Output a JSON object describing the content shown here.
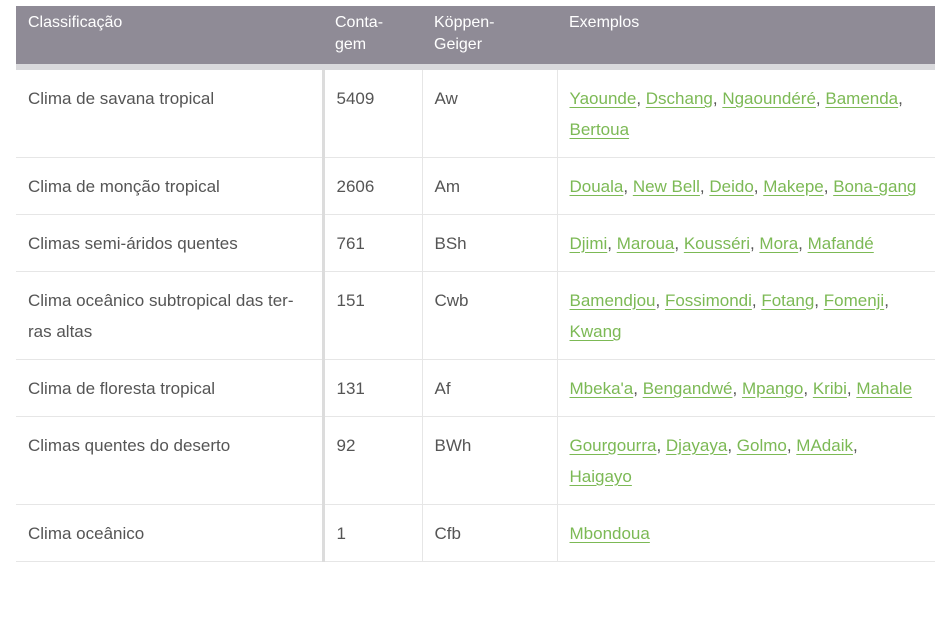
{
  "table": {
    "headers": {
      "classification": "Classificação",
      "count_line1": "Conta-",
      "count_line2": "gem",
      "koppen_line1": "Köppen-",
      "koppen_line2": "Geiger",
      "examples": "Exemplos"
    },
    "rows": [
      {
        "classification": "Clima de savana tropical",
        "count": "5409",
        "koppen": "Aw",
        "examples": [
          "Yaounde",
          "Dschang",
          "Ngaoundéré",
          "Bamenda",
          "Bertoua"
        ]
      },
      {
        "classification": "Clima de monção tropical",
        "count": "2606",
        "koppen": "Am",
        "examples": [
          "Douala",
          "New Bell",
          "Deido",
          "Makepe",
          "Bona-gang"
        ]
      },
      {
        "classification": "Climas semi-áridos quentes",
        "count": "761",
        "koppen": "BSh",
        "examples": [
          "Djimi",
          "Maroua",
          "Kousséri",
          "Mora",
          "Mafandé"
        ]
      },
      {
        "classification": "Clima oceânico subtropical das ter-ras altas",
        "count": "151",
        "koppen": "Cwb",
        "examples": [
          "Bamendjou",
          "Fossimondi",
          "Fotang",
          "Fomenji",
          "Kwang"
        ]
      },
      {
        "classification": "Clima de floresta tropical",
        "count": "131",
        "koppen": "Af",
        "examples": [
          "Mbeka'a",
          "Bengandwé",
          "Mpango",
          "Kribi",
          "Mahale"
        ]
      },
      {
        "classification": "Climas quentes do deserto",
        "count": "92",
        "koppen": "BWh",
        "examples": [
          "Gourgourra",
          "Djayaya",
          "Golmo",
          "MAdaik",
          "Haigayo"
        ]
      },
      {
        "classification": "Clima oceânico",
        "count": "1",
        "koppen": "Cfb",
        "examples": [
          "Mbondoua"
        ]
      }
    ]
  },
  "colors": {
    "header_bg": "#8f8b96",
    "link": "#7cb955",
    "text": "#555555"
  }
}
